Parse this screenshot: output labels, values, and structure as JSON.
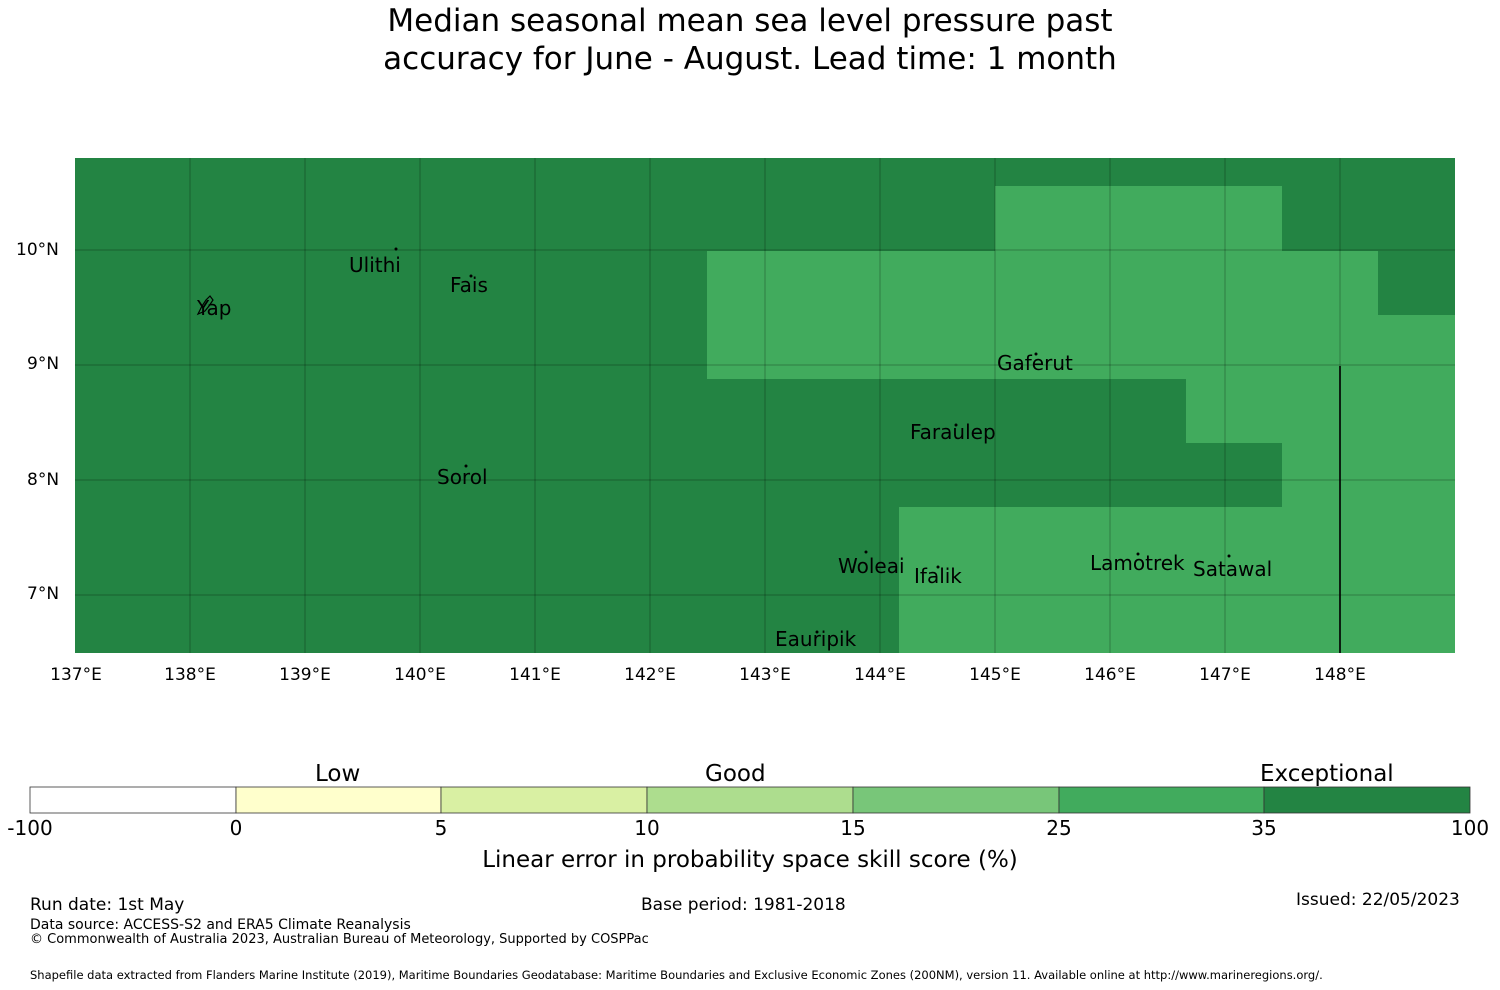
{
  "title_line1": "Median seasonal mean sea level pressure past",
  "title_line2": "accuracy for June - August. Lead time: 1 month",
  "map": {
    "lat_labels": [
      "10°N",
      "9°N",
      "8°N",
      "7°N"
    ],
    "lon_labels": [
      "137°E",
      "138°E",
      "139°E",
      "140°E",
      "141°E",
      "142°E",
      "143°E",
      "144°E",
      "145°E",
      "146°E",
      "147°E",
      "148°E"
    ],
    "places": [
      "Ulithi",
      "Fais",
      "Yap",
      "Gaferut",
      "Faraulep",
      "Sorol",
      "Woleai",
      "Ifalik",
      "Lamotrek",
      "Satawal",
      "Eauripik"
    ],
    "colors": {
      "exceptional": "#238443",
      "band_25_35": "#41ab5d"
    }
  },
  "colorbar": {
    "categories": [
      "Low",
      "Good",
      "Exceptional"
    ],
    "ticks": [
      "-100",
      "0",
      "5",
      "10",
      "15",
      "25",
      "35",
      "100"
    ],
    "colors": [
      "#ffffff",
      "#ffffcc",
      "#d9f0a3",
      "#addd8e",
      "#78c679",
      "#41ab5d",
      "#238443"
    ],
    "title": "Linear error in probability space skill score (%)"
  },
  "footer": {
    "run_date": "Run date: 1st May",
    "base_period": "Base period: 1981-2018",
    "issued": "Issued: 22/05/2023",
    "data_source": "Data source: ACCESS-S2 and ERA5 Climate Reanalysis",
    "copyright": "© Commonwealth of Australia 2023, Australian Bureau of Meteorology, Supported by COSPPac",
    "shapefile": "Shapefile data extracted from Flanders Marine Institute (2019), Maritime Boundaries Geodatabase: Maritime Boundaries and Exclusive Economic Zones (200NM), version 11. Available online at http://www.marineregions.org/."
  }
}
